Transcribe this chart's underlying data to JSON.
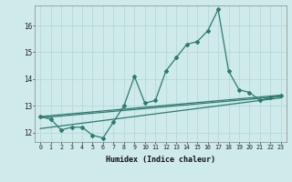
{
  "xlabel": "Humidex (Indice chaleur)",
  "background_color": "#ceeaea",
  "line_color": "#2e7b6e",
  "grid_color": "#b5d5d5",
  "x_values": [
    0,
    1,
    2,
    3,
    4,
    5,
    6,
    7,
    8,
    9,
    10,
    11,
    12,
    13,
    14,
    15,
    16,
    17,
    18,
    19,
    20,
    21,
    22,
    23
  ],
  "main_y": [
    12.6,
    12.5,
    12.1,
    12.2,
    12.2,
    11.9,
    11.8,
    12.4,
    13.0,
    14.1,
    13.1,
    13.2,
    14.3,
    14.8,
    15.3,
    15.4,
    15.8,
    16.6,
    14.3,
    13.6,
    13.5,
    13.2,
    13.3,
    13.4
  ],
  "trend1_y": [
    12.6,
    13.4
  ],
  "trend2_y": [
    12.55,
    13.35
  ],
  "trend3_y": [
    12.15,
    13.3
  ],
  "ylim": [
    11.65,
    16.75
  ],
  "xlim": [
    -0.5,
    23.5
  ],
  "yticks": [
    12,
    13,
    14,
    15,
    16
  ],
  "xticks": [
    0,
    1,
    2,
    3,
    4,
    5,
    6,
    7,
    8,
    9,
    10,
    11,
    12,
    13,
    14,
    15,
    16,
    17,
    18,
    19,
    20,
    21,
    22,
    23
  ]
}
